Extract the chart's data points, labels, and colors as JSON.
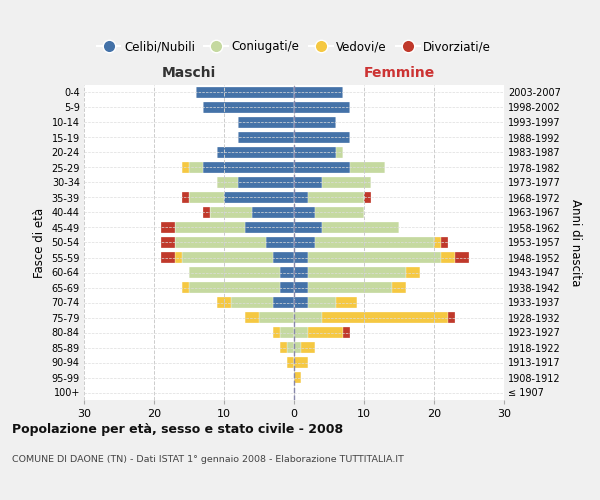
{
  "age_groups": [
    "100+",
    "95-99",
    "90-94",
    "85-89",
    "80-84",
    "75-79",
    "70-74",
    "65-69",
    "60-64",
    "55-59",
    "50-54",
    "45-49",
    "40-44",
    "35-39",
    "30-34",
    "25-29",
    "20-24",
    "15-19",
    "10-14",
    "5-9",
    "0-4"
  ],
  "birth_years": [
    "≤ 1907",
    "1908-1912",
    "1913-1917",
    "1918-1922",
    "1923-1927",
    "1928-1932",
    "1933-1937",
    "1938-1942",
    "1943-1947",
    "1948-1952",
    "1953-1957",
    "1958-1962",
    "1963-1967",
    "1968-1972",
    "1973-1977",
    "1978-1982",
    "1983-1987",
    "1988-1992",
    "1993-1997",
    "1998-2002",
    "2003-2007"
  ],
  "male": {
    "celibi": [
      0,
      0,
      0,
      0,
      0,
      0,
      3,
      2,
      2,
      3,
      4,
      7,
      6,
      10,
      8,
      13,
      11,
      8,
      8,
      13,
      14
    ],
    "coniugati": [
      0,
      0,
      0,
      1,
      2,
      5,
      6,
      13,
      13,
      13,
      13,
      10,
      6,
      5,
      3,
      2,
      0,
      0,
      0,
      0,
      0
    ],
    "vedovi": [
      0,
      0,
      1,
      1,
      1,
      2,
      2,
      1,
      0,
      1,
      0,
      0,
      0,
      0,
      0,
      1,
      0,
      0,
      0,
      0,
      0
    ],
    "divorziati": [
      0,
      0,
      0,
      0,
      0,
      0,
      0,
      0,
      0,
      2,
      2,
      2,
      1,
      1,
      0,
      0,
      0,
      0,
      0,
      0,
      0
    ]
  },
  "female": {
    "nubili": [
      0,
      0,
      0,
      0,
      0,
      0,
      2,
      2,
      2,
      2,
      3,
      4,
      3,
      2,
      4,
      8,
      6,
      8,
      6,
      8,
      7
    ],
    "coniugate": [
      0,
      0,
      0,
      1,
      2,
      4,
      4,
      12,
      14,
      19,
      17,
      11,
      7,
      8,
      7,
      5,
      1,
      0,
      0,
      0,
      0
    ],
    "vedove": [
      0,
      1,
      2,
      2,
      5,
      18,
      3,
      2,
      2,
      2,
      1,
      0,
      0,
      0,
      0,
      0,
      0,
      0,
      0,
      0,
      0
    ],
    "divorziate": [
      0,
      0,
      0,
      0,
      1,
      1,
      0,
      0,
      0,
      2,
      1,
      0,
      0,
      1,
      0,
      0,
      0,
      0,
      0,
      0,
      0
    ]
  },
  "colors": {
    "celibi_nubili": "#4472a8",
    "coniugati": "#c5d9a0",
    "vedovi": "#f5c842",
    "divorziati": "#c0392b"
  },
  "xlim": 30,
  "xticks": [
    -30,
    -20,
    -10,
    0,
    10,
    20,
    30
  ],
  "xlabel_left": "Maschi",
  "xlabel_right": "Femmine",
  "ylabel_left": "Fasce di età",
  "ylabel_right": "Anni di nascita",
  "title": "Popolazione per età, sesso e stato civile - 2008",
  "subtitle": "COMUNE DI DAONE (TN) - Dati ISTAT 1° gennaio 2008 - Elaborazione TUTTITALIA.IT",
  "legend_labels": [
    "Celibi/Nubili",
    "Coniugati/e",
    "Vedovi/e",
    "Divorziati/e"
  ],
  "bg_color": "#f0f0f0",
  "plot_bg": "#ffffff",
  "bar_height": 0.75,
  "figsize": [
    6.0,
    5.0
  ],
  "dpi": 100
}
